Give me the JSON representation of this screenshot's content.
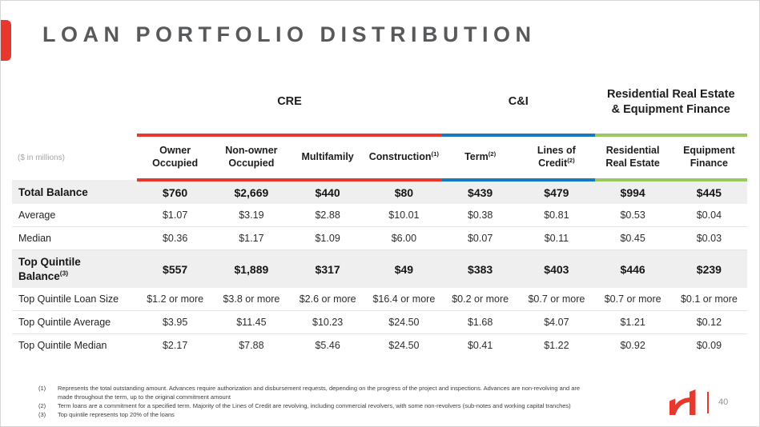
{
  "slide": {
    "title": "LOAN PORTFOLIO DISTRIBUTION",
    "units_label": "($ in millions)",
    "page_number": "40"
  },
  "colors": {
    "cre": "#e8382d",
    "ci": "#1678be",
    "rre": "#9cc861",
    "title_gray": "#58595b",
    "emphasis_row_bg": "#efefef"
  },
  "table": {
    "groups": [
      {
        "id": "cre",
        "label": "CRE",
        "span": 4
      },
      {
        "id": "ci",
        "label": "C&I",
        "span": 2
      },
      {
        "id": "rre",
        "label": "Residential Real Estate & Equipment Finance",
        "span": 2
      }
    ],
    "columns": [
      {
        "label": "Owner Occupied",
        "sup": "",
        "group": "cre"
      },
      {
        "label": "Non-owner Occupied",
        "sup": "",
        "group": "cre"
      },
      {
        "label": "Multifamily",
        "sup": "",
        "group": "cre"
      },
      {
        "label": "Construction",
        "sup": "(1)",
        "group": "cre"
      },
      {
        "label": "Term",
        "sup": "(2)",
        "group": "ci"
      },
      {
        "label": "Lines of Credit",
        "sup": "(2)",
        "group": "ci"
      },
      {
        "label": "Residential Real Estate",
        "sup": "",
        "group": "rre"
      },
      {
        "label": "Equipment Finance",
        "sup": "",
        "group": "rre"
      }
    ],
    "rows": [
      {
        "label": "Total Balance",
        "sup": "",
        "emphasis": true,
        "values": [
          "$760",
          "$2,669",
          "$440",
          "$80",
          "$439",
          "$479",
          "$994",
          "$445"
        ]
      },
      {
        "label": "Average",
        "sup": "",
        "emphasis": false,
        "values": [
          "$1.07",
          "$3.19",
          "$2.88",
          "$10.01",
          "$0.38",
          "$0.81",
          "$0.53",
          "$0.04"
        ]
      },
      {
        "label": "Median",
        "sup": "",
        "emphasis": false,
        "values": [
          "$0.36",
          "$1.17",
          "$1.09",
          "$6.00",
          "$0.07",
          "$0.11",
          "$0.45",
          "$0.03"
        ]
      },
      {
        "label": "Top Quintile Balance",
        "sup": "(3)",
        "emphasis": true,
        "values": [
          "$557",
          "$1,889",
          "$317",
          "$49",
          "$383",
          "$403",
          "$446",
          "$239"
        ]
      },
      {
        "label": "Top Quintile Loan Size",
        "sup": "",
        "emphasis": false,
        "values": [
          "$1.2 or more",
          "$3.8 or more",
          "$2.6 or more",
          "$16.4 or more",
          "$0.2 or more",
          "$0.7 or more",
          "$0.7 or more",
          "$0.1 or more"
        ]
      },
      {
        "label": "Top Quintile Average",
        "sup": "",
        "emphasis": false,
        "values": [
          "$3.95",
          "$11.45",
          "$10.23",
          "$24.50",
          "$1.68",
          "$4.07",
          "$1.21",
          "$0.12"
        ]
      },
      {
        "label": "Top Quintile Median",
        "sup": "",
        "emphasis": false,
        "values": [
          "$2.17",
          "$7.88",
          "$5.46",
          "$24.50",
          "$0.41",
          "$1.22",
          "$0.92",
          "$0.09"
        ]
      }
    ]
  },
  "footnotes": [
    {
      "marker": "(1)",
      "text": "Represents the total outstanding amount. Advances require authorization and disbursement requests, depending on the progress of the project and inspections. Advances are non-revolving and are made throughout the term, up to the original commitment amount"
    },
    {
      "marker": "(2)",
      "text": "Term loans are a commitment for a specified term. Majority of the Lines of Credit are revolving, including commercial revolvers, with some non-revolvers (sub-notes and working capital tranches)"
    },
    {
      "marker": "(3)",
      "text": "Top quintile represents top 20% of the loans"
    }
  ]
}
